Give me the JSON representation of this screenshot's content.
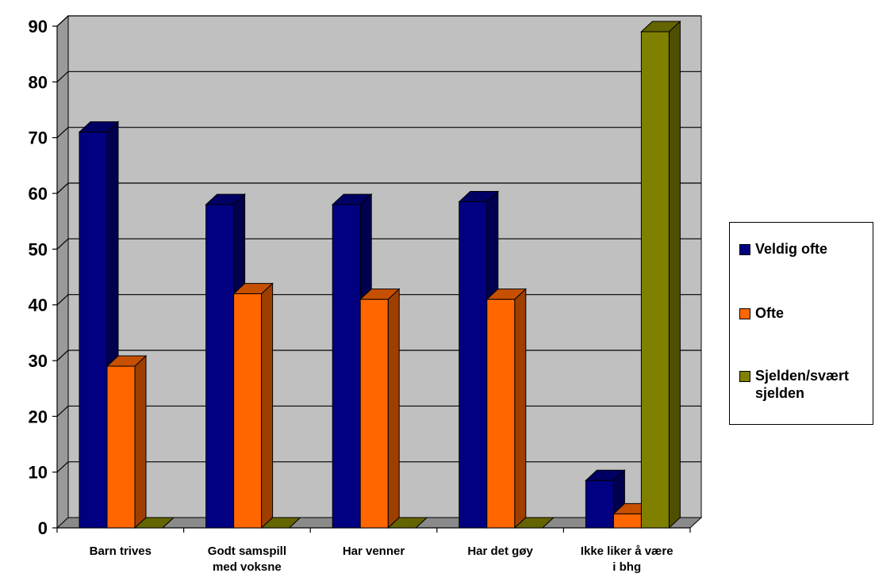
{
  "chart_data": {
    "type": "bar",
    "categories": [
      [
        "Barn trives"
      ],
      [
        "Godt samspill",
        "med voksne"
      ],
      [
        "Har venner"
      ],
      [
        "Har det gøy"
      ],
      [
        "Ikke liker å være",
        "i bhg"
      ]
    ],
    "series": [
      {
        "name": "Veldig ofte",
        "color": "#000080",
        "values": [
          71,
          58,
          58,
          58.5,
          8.5
        ]
      },
      {
        "name": "Ofte",
        "color": "#FF6600",
        "values": [
          29,
          42,
          41,
          41,
          2.5
        ]
      },
      {
        "name": "Sjelden/svært sjelden",
        "color": "#808000",
        "values": [
          0,
          0,
          0,
          0,
          89
        ]
      }
    ],
    "ylim": [
      0,
      90
    ],
    "yticks": [
      0,
      10,
      20,
      30,
      40,
      50,
      60,
      70,
      80,
      90
    ],
    "grid": true,
    "legend_position": "right",
    "plot_background": "#C0C0C0"
  },
  "legend": {
    "items": [
      {
        "lines": [
          "Veldig ofte"
        ],
        "color": "#000080"
      },
      {
        "lines": [
          "Ofte"
        ],
        "color": "#FF6600"
      },
      {
        "lines": [
          "Sjelden/svært",
          "sjelden"
        ],
        "color": "#808000"
      }
    ]
  }
}
